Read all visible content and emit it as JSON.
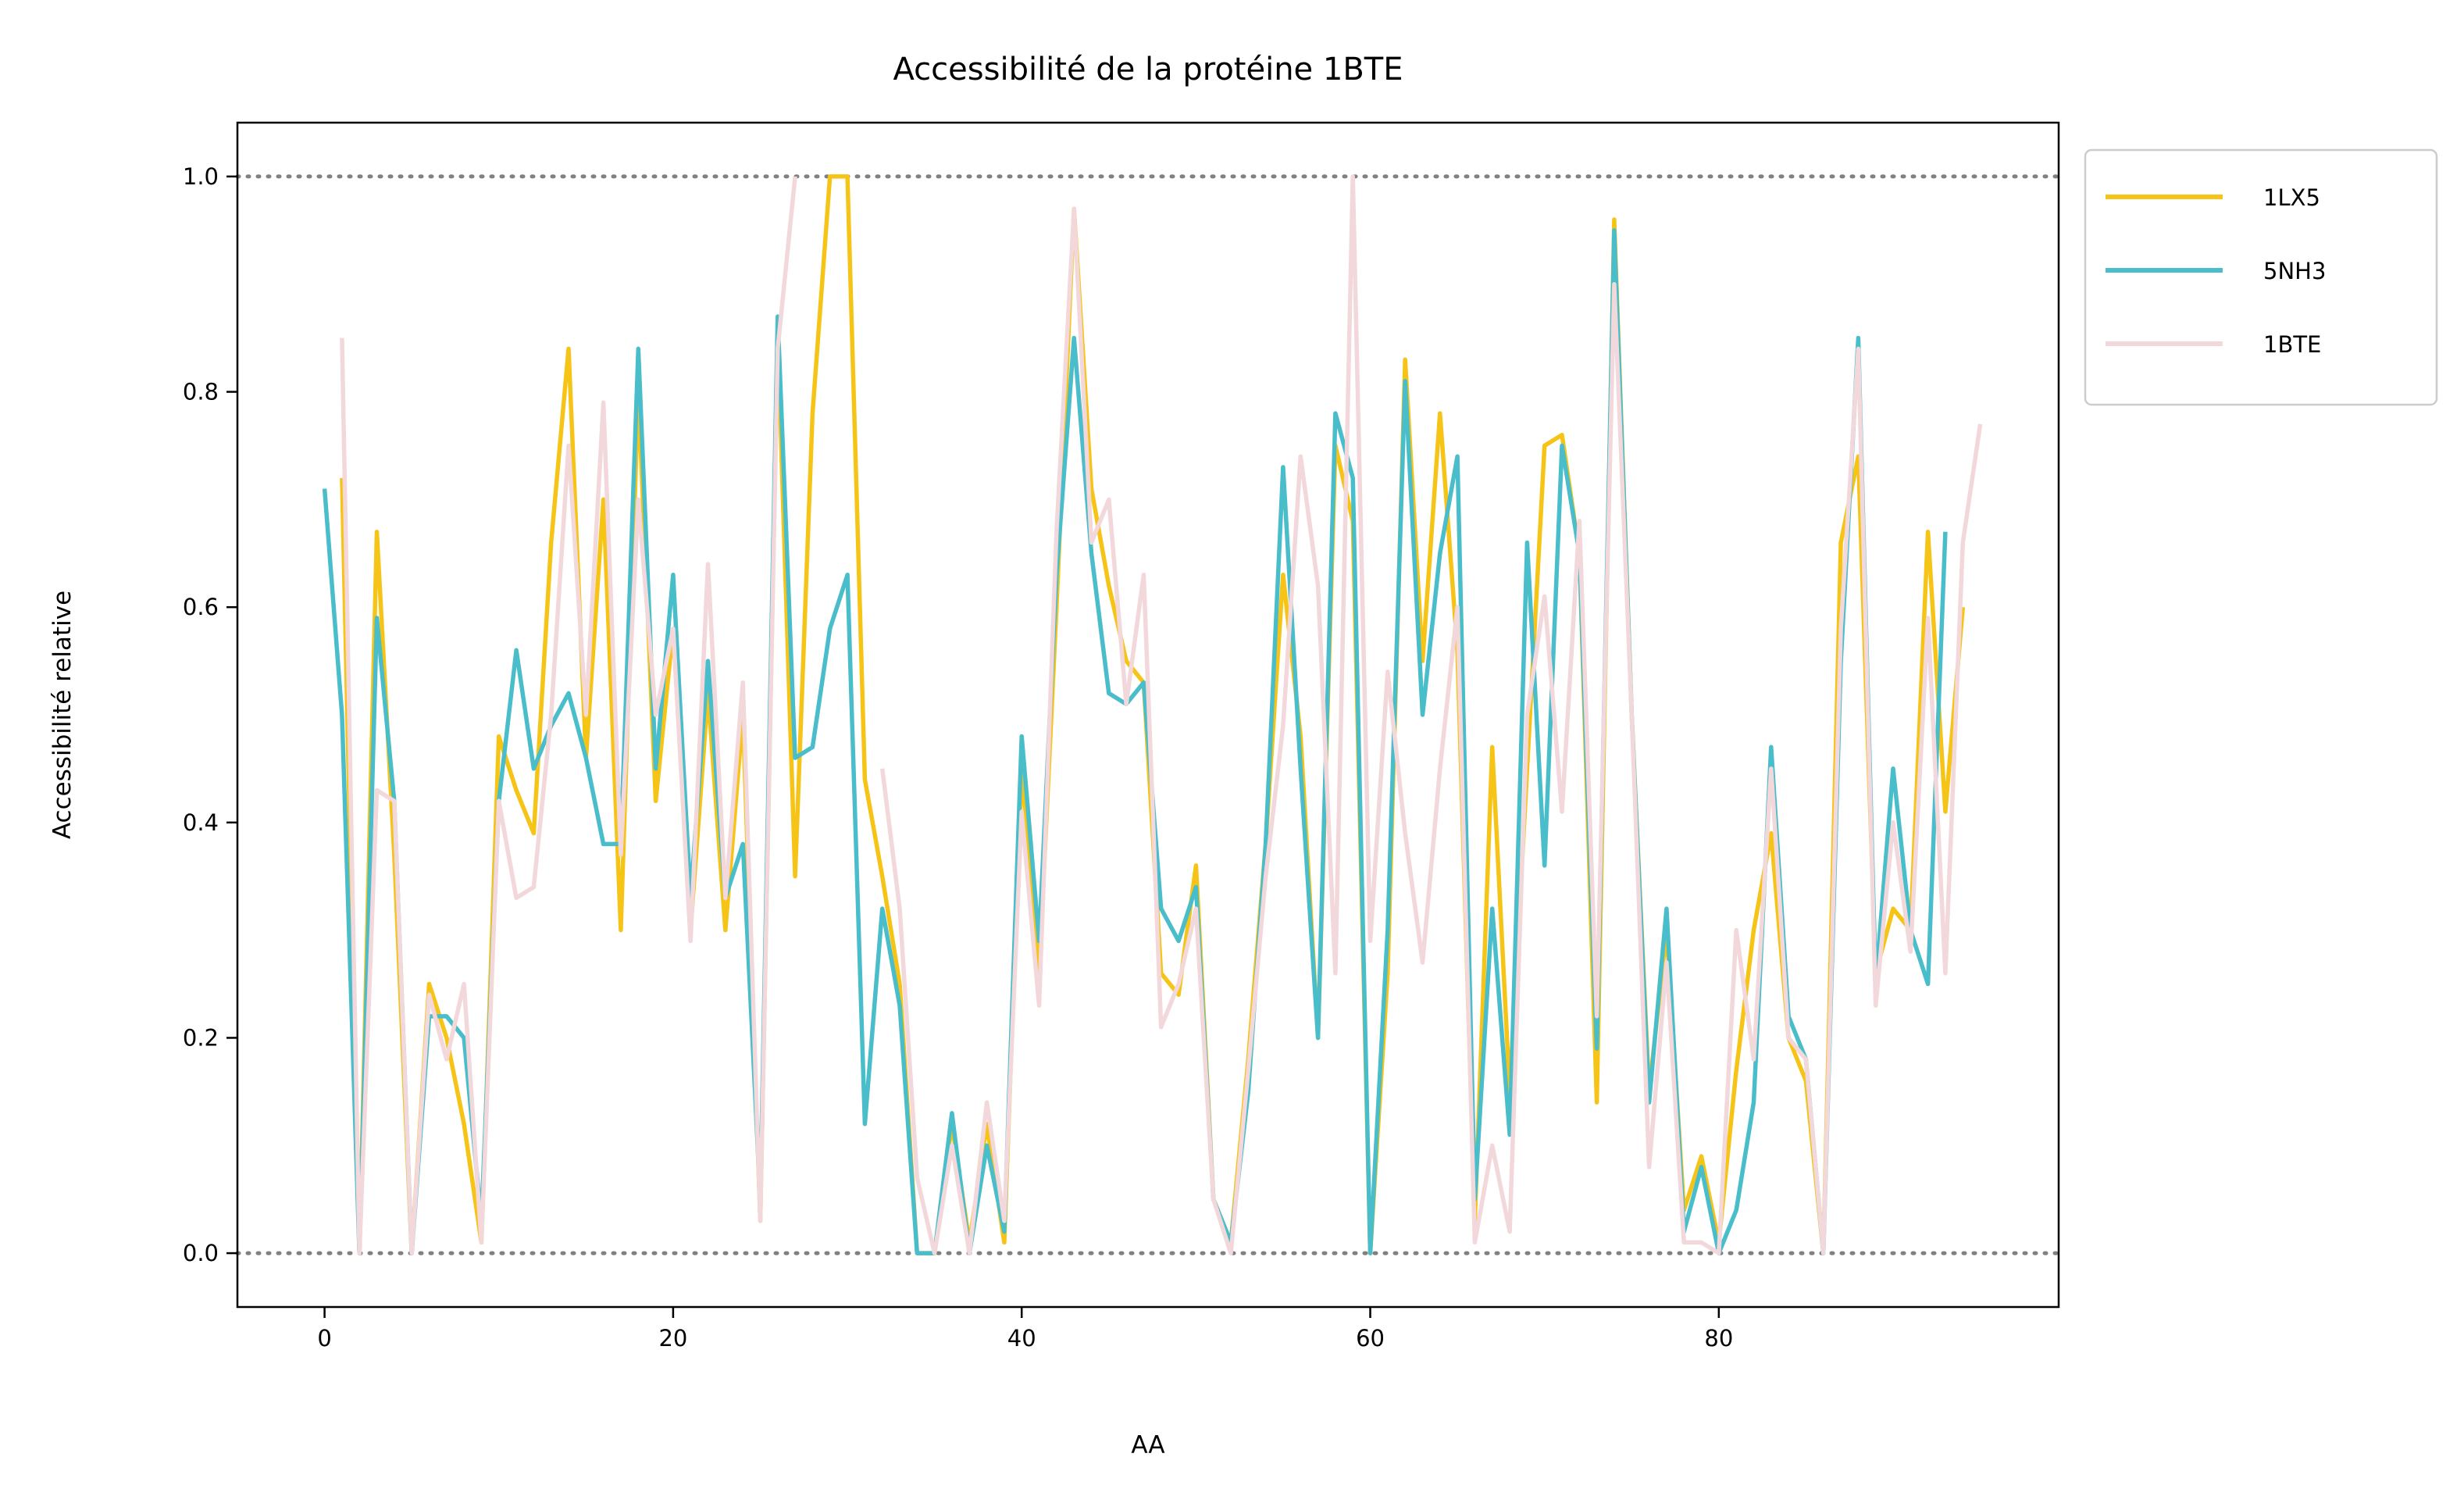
{
  "chart_data": {
    "type": "line",
    "title": "Accessibilité de la protéine 1BTE",
    "xlabel": "AA",
    "ylabel": "Accessibilité relative",
    "xlim": [
      -5,
      99.5
    ],
    "ylim": [
      -0.05,
      1.05
    ],
    "xticks": [
      0,
      20,
      40,
      60,
      80
    ],
    "yticks": [
      0.0,
      0.2,
      0.4,
      0.6,
      0.8,
      1.0
    ],
    "xtick_labels": [
      "0",
      "20",
      "40",
      "60",
      "80"
    ],
    "ytick_labels": [
      "0.0",
      "0.2",
      "0.4",
      "0.6",
      "0.8",
      "1.0"
    ],
    "reference_lines": [
      0.0,
      1.0
    ],
    "grid": false,
    "legend_position": "outside-top-right",
    "series": [
      {
        "name": "1LX5",
        "color": "#F6C416",
        "x_start": 1,
        "values": [
          0.72,
          0.0,
          0.67,
          0.37,
          0.0,
          0.25,
          0.2,
          0.12,
          0.01,
          0.48,
          0.43,
          0.39,
          0.66,
          0.84,
          0.46,
          0.7,
          0.3,
          0.8,
          0.42,
          0.58,
          0.3,
          0.52,
          0.3,
          0.5,
          0.03,
          0.85,
          0.35,
          0.78,
          1.0,
          1.0,
          0.44,
          0.35,
          0.25,
          0.0,
          0.0,
          0.12,
          0.01,
          0.12,
          0.01,
          0.45,
          0.26,
          0.6,
          0.97,
          0.71,
          0.62,
          0.55,
          0.53,
          0.26,
          0.24,
          0.36,
          0.05,
          0.01,
          0.18,
          0.38,
          0.63,
          0.48,
          0.2,
          0.75,
          0.68,
          0.0,
          0.26,
          0.83,
          0.55,
          0.78,
          0.56,
          0.03,
          0.47,
          0.15,
          0.45,
          0.75,
          0.76,
          0.65,
          0.14,
          0.96,
          0.5,
          0.15,
          0.3,
          0.04,
          0.09,
          0.01,
          0.17,
          0.3,
          0.39,
          0.2,
          0.16,
          0.0,
          0.66,
          0.74,
          0.26,
          0.32,
          0.3,
          0.67,
          0.41,
          0.6
        ]
      },
      {
        "name": "5NH3",
        "color": "#4ABDCB",
        "x_start": 0,
        "values": [
          0.71,
          0.5,
          0.0,
          0.59,
          0.42,
          0.0,
          0.22,
          0.22,
          0.2,
          0.03,
          0.42,
          0.56,
          0.45,
          0.49,
          0.52,
          0.46,
          0.38,
          0.38,
          0.84,
          0.45,
          0.63,
          0.33,
          0.55,
          0.33,
          0.38,
          0.05,
          0.87,
          0.46,
          0.47,
          0.58,
          0.63,
          0.12,
          0.32,
          0.23,
          0.0,
          0.0,
          0.13,
          0.0,
          0.1,
          0.02,
          0.48,
          0.29,
          0.63,
          0.85,
          0.65,
          0.52,
          0.51,
          0.53,
          0.32,
          0.29,
          0.34,
          0.05,
          0.01,
          0.15,
          0.38,
          0.73,
          0.45,
          0.2,
          0.78,
          0.72,
          0.0,
          0.3,
          0.81,
          0.5,
          0.65,
          0.74,
          0.05,
          0.32,
          0.11,
          0.66,
          0.36,
          0.75,
          0.65,
          0.19,
          0.95,
          0.5,
          0.14,
          0.32,
          0.02,
          0.08,
          0.0,
          0.04,
          0.14,
          0.47,
          0.22,
          0.18,
          0.0,
          0.55,
          0.85,
          0.25,
          0.45,
          0.3,
          0.25,
          0.67
        ]
      },
      {
        "name": "1BTE",
        "color": "#F2D7DB",
        "x_start": 1,
        "values": [
          0.85,
          0.0,
          0.43,
          0.42,
          0.0,
          0.24,
          0.18,
          0.25,
          0.01,
          0.42,
          0.33,
          0.34,
          0.5,
          0.75,
          0.5,
          0.79,
          0.37,
          0.7,
          0.5,
          0.58,
          0.29,
          0.64,
          0.33,
          0.53,
          0.03,
          0.84,
          1.0,
          null,
          null,
          null,
          null,
          0.45,
          0.32,
          0.07,
          0.0,
          0.1,
          0.0,
          0.14,
          0.03,
          0.41,
          0.23,
          0.67,
          0.97,
          0.66,
          0.7,
          0.51,
          0.63,
          0.21,
          0.25,
          0.32,
          0.05,
          0.0,
          0.17,
          0.35,
          0.49,
          0.74,
          0.62,
          0.26,
          1.0,
          0.29,
          0.54,
          0.39,
          0.27,
          0.45,
          0.6,
          0.01,
          0.1,
          0.02,
          0.5,
          0.61,
          0.41,
          0.68,
          0.22,
          0.9,
          0.5,
          0.08,
          0.27,
          0.01,
          0.01,
          0.0,
          0.3,
          0.18,
          0.45,
          0.2,
          0.18,
          0.0,
          0.58,
          0.84,
          0.23,
          0.4,
          0.28,
          0.59,
          0.26,
          0.66,
          0.77
        ]
      }
    ]
  }
}
